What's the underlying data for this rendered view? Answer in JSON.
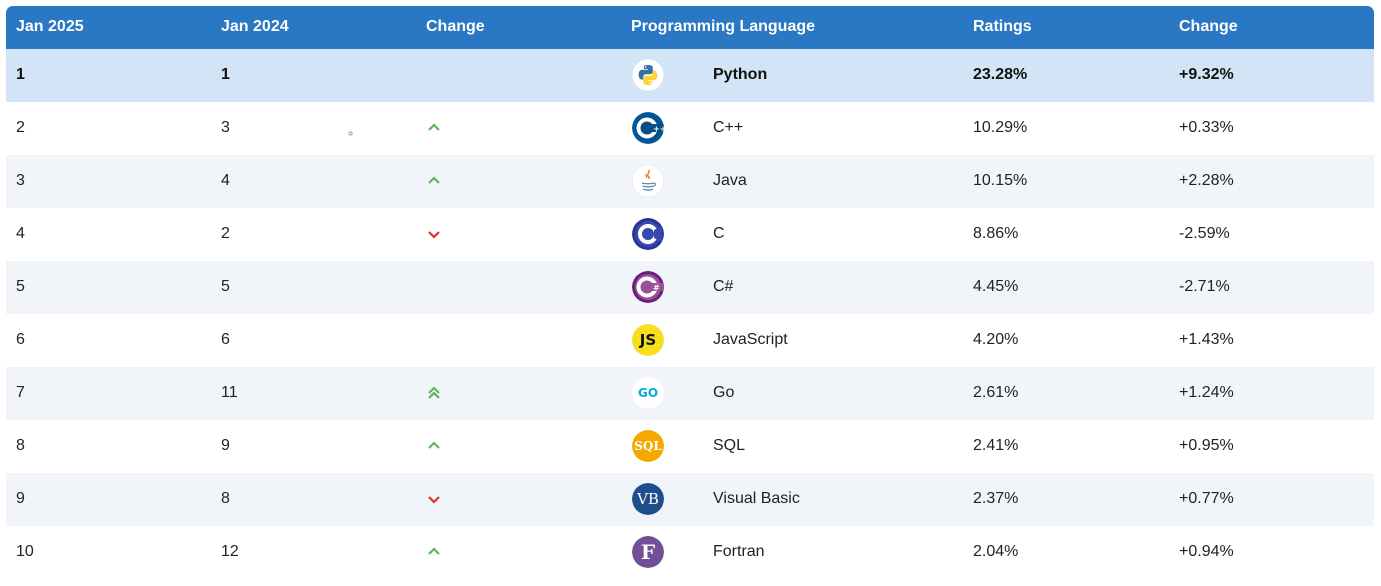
{
  "header": {
    "col1": "Jan 2025",
    "col2": "Jan 2024",
    "col3": "Change",
    "col4": "Programming Language",
    "col5": "Ratings",
    "col6": "Change"
  },
  "rows": [
    {
      "rank": "1",
      "prev": "1",
      "trend": "none",
      "logo": "python-logo",
      "language": "Python",
      "rating": "23.28%",
      "change": "+9.32%"
    },
    {
      "rank": "2",
      "prev": "3",
      "trend": "up",
      "logo": "cpp-logo",
      "language": "C++",
      "rating": "10.29%",
      "change": "+0.33%"
    },
    {
      "rank": "3",
      "prev": "4",
      "trend": "up",
      "logo": "java-logo",
      "language": "Java",
      "rating": "10.15%",
      "change": "+2.28%"
    },
    {
      "rank": "4",
      "prev": "2",
      "trend": "down",
      "logo": "c-logo",
      "language": "C",
      "rating": "8.86%",
      "change": "-2.59%"
    },
    {
      "rank": "5",
      "prev": "5",
      "trend": "none",
      "logo": "csharp-logo",
      "language": "C#",
      "rating": "4.45%",
      "change": "-2.71%"
    },
    {
      "rank": "6",
      "prev": "6",
      "trend": "none",
      "logo": "javascript-logo",
      "language": "JavaScript",
      "rating": "4.20%",
      "change": "+1.43%"
    },
    {
      "rank": "7",
      "prev": "11",
      "trend": "double-up",
      "logo": "go-logo",
      "language": "Go",
      "rating": "2.61%",
      "change": "+1.24%"
    },
    {
      "rank": "8",
      "prev": "9",
      "trend": "up",
      "logo": "sql-logo",
      "language": "SQL",
      "rating": "2.41%",
      "change": "+0.95%"
    },
    {
      "rank": "9",
      "prev": "8",
      "trend": "down",
      "logo": "visual-basic-logo",
      "language": "Visual Basic",
      "rating": "2.37%",
      "change": "+0.77%"
    },
    {
      "rank": "10",
      "prev": "12",
      "trend": "up",
      "logo": "fortran-logo",
      "language": "Fortran",
      "rating": "2.04%",
      "change": "+0.94%"
    }
  ],
  "logo_text": {
    "javascript": "JS",
    "go": "GO",
    "sql": "SQL",
    "visual_basic": "VB",
    "fortran": "F"
  },
  "colors": {
    "header_bg": "#2a77c4",
    "top_row_bg": "#d2e4f6",
    "striped_row_bg": "#f1f5fa",
    "up_arrow": "#5cb85c",
    "down_arrow": "#d9381e"
  }
}
